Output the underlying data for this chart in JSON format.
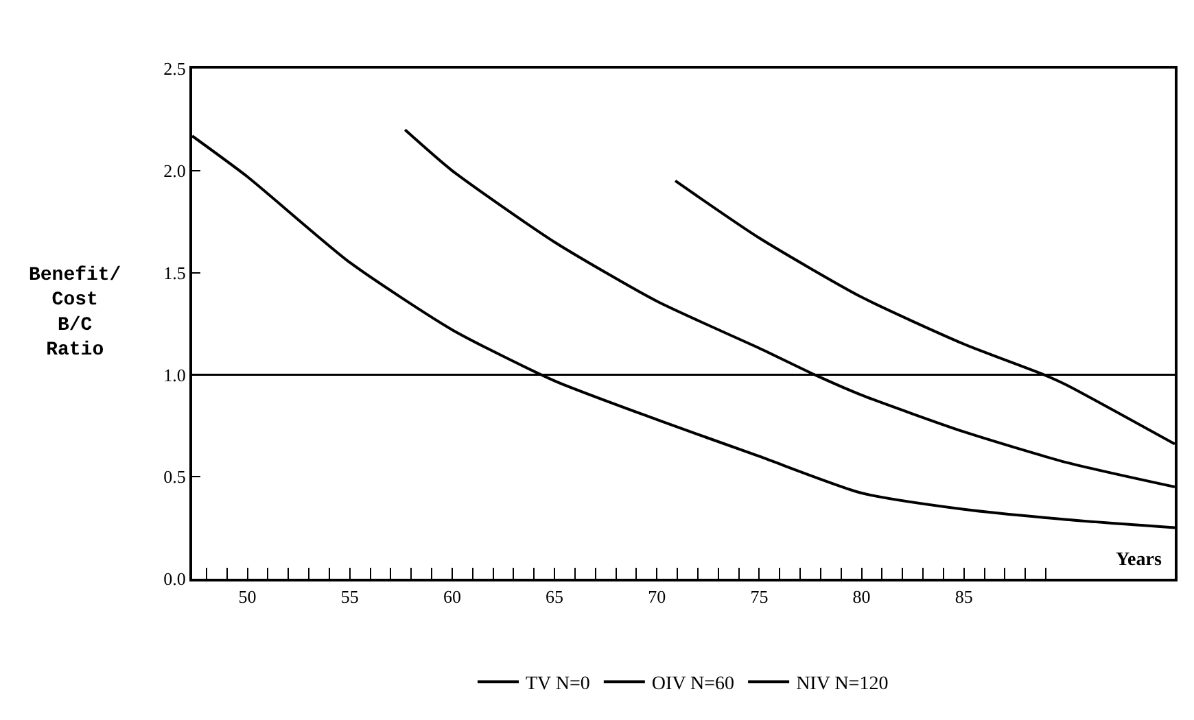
{
  "chart_data": {
    "type": "line",
    "xlabel": "Years",
    "ylabel": "Benefit/\nCost\nB/C\nRatio",
    "xlim": [
      47.3,
      95.3
    ],
    "ylim": [
      0,
      2.5
    ],
    "xticks": [
      {
        "value": 48,
        "label": null
      },
      {
        "value": 49,
        "label": null
      },
      50,
      {
        "value": 51,
        "label": null
      },
      {
        "value": 52,
        "label": null
      },
      {
        "value": 53,
        "label": null
      },
      {
        "value": 54,
        "label": null
      },
      55,
      {
        "value": 56,
        "label": null
      },
      {
        "value": 57,
        "label": null
      },
      {
        "value": 58,
        "label": null
      },
      {
        "value": 59,
        "label": null
      },
      60,
      {
        "value": 61,
        "label": null
      },
      {
        "value": 62,
        "label": null
      },
      {
        "value": 63,
        "label": null
      },
      {
        "value": 64,
        "label": null
      },
      65,
      {
        "value": 66,
        "label": null
      },
      {
        "value": 67,
        "label": null
      },
      {
        "value": 68,
        "label": null
      },
      {
        "value": 69,
        "label": null
      },
      70,
      {
        "value": 71,
        "label": null
      },
      {
        "value": 72,
        "label": null
      },
      {
        "value": 73,
        "label": null
      },
      {
        "value": 74,
        "label": null
      },
      75,
      {
        "value": 76,
        "label": null
      },
      {
        "value": 77,
        "label": null
      },
      {
        "value": 78,
        "label": null
      },
      {
        "value": 79,
        "label": null
      },
      80,
      {
        "value": 81,
        "label": null
      },
      {
        "value": 82,
        "label": null
      },
      {
        "value": 83,
        "label": null
      },
      {
        "value": 84,
        "label": null
      },
      85,
      {
        "value": 86,
        "label": null
      },
      {
        "value": 87,
        "label": null
      },
      {
        "value": 88,
        "label": null
      },
      {
        "value": 89,
        "label": null
      }
    ],
    "yticks": [
      {
        "value": 0,
        "label": "0.0"
      },
      {
        "value": 0.5,
        "label": "0.5"
      },
      {
        "value": 1,
        "label": "1.0"
      },
      {
        "value": 1.5,
        "label": "1.5"
      },
      {
        "value": 2,
        "label": "2.0"
      },
      {
        "value": 2.5,
        "label": "2.5"
      }
    ],
    "legend": "bottom",
    "marker": "none",
    "line_style": "solid",
    "ref_lines": [
      {
        "axis": "y",
        "value": 1.0,
        "color": "#000000"
      }
    ],
    "series": [
      {
        "name": "TV N=0",
        "color": "#000000",
        "x": [
          47.3,
          50,
          55,
          60,
          65,
          70,
          75,
          80,
          85,
          90,
          95.3
        ],
        "values": [
          2.17,
          1.97,
          1.55,
          1.22,
          0.97,
          0.78,
          0.6,
          0.42,
          0.34,
          0.29,
          0.25
        ]
      },
      {
        "name": "OIV N=60",
        "color": "#000000",
        "x": [
          57.7,
          60,
          65,
          70,
          75,
          77.7,
          80,
          85,
          90,
          95.3
        ],
        "values": [
          2.2,
          2.0,
          1.65,
          1.36,
          1.13,
          1.0,
          0.9,
          0.72,
          0.57,
          0.45
        ]
      },
      {
        "name": "NIV N=120",
        "color": "#000000",
        "x": [
          70.9,
          75,
          80,
          85,
          88.9,
          90,
          95.3
        ],
        "values": [
          1.95,
          1.67,
          1.38,
          1.15,
          1.0,
          0.95,
          0.66
        ]
      }
    ]
  }
}
